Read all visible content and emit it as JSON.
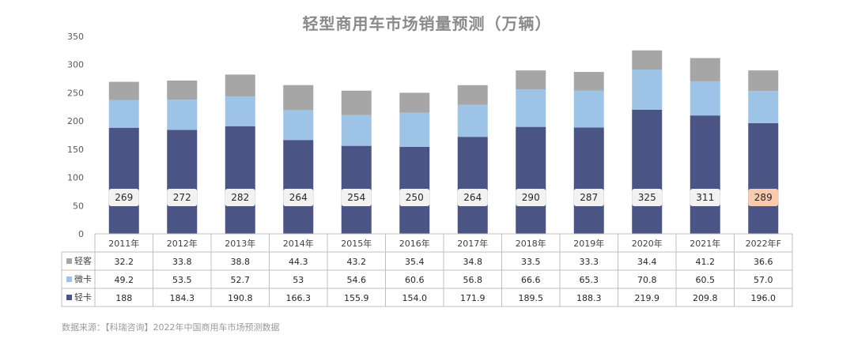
{
  "chart_data": {
    "type": "bar",
    "stacked": true,
    "title": "轻型商用车市场销量预测（万辆）",
    "categories": [
      "2011年",
      "2012年",
      "2013年",
      "2014年",
      "2015年",
      "2016年",
      "2017年",
      "2018年",
      "2019年",
      "2020年",
      "2021年",
      "2022年F"
    ],
    "series": [
      {
        "name": "轻卡",
        "color": "#4a5485",
        "values": [
          "188",
          "184.3",
          "190.8",
          "166.3",
          "155.9",
          "154.0",
          "171.9",
          "189.5",
          "188.3",
          "219.9",
          "209.8",
          "196.0"
        ]
      },
      {
        "name": "微卡",
        "color": "#9dc3e6",
        "values": [
          "49.2",
          "53.5",
          "52.7",
          "53",
          "54.6",
          "60.6",
          "56.8",
          "66.6",
          "65.3",
          "70.8",
          "60.5",
          "57.0"
        ]
      },
      {
        "name": "轻客",
        "color": "#a6a6a6",
        "values": [
          "32.2",
          "33.8",
          "38.8",
          "44.3",
          "43.2",
          "35.4",
          "34.8",
          "33.5",
          "33.3",
          "34.4",
          "41.2",
          "36.6"
        ]
      }
    ],
    "totals": [
      269,
      272,
      282,
      264,
      254,
      250,
      264,
      290,
      287,
      325,
      311,
      289
    ],
    "highlight_total_index": 11,
    "highlight_color": "#f8cbad",
    "yticks": [
      0,
      50,
      100,
      150,
      200,
      250,
      300,
      350
    ],
    "ylim": [
      0,
      350
    ],
    "grid": false,
    "legend": "data-table-left"
  },
  "source": "数据来源：【科瑞咨询】2022年中国商用车市场预测数据"
}
